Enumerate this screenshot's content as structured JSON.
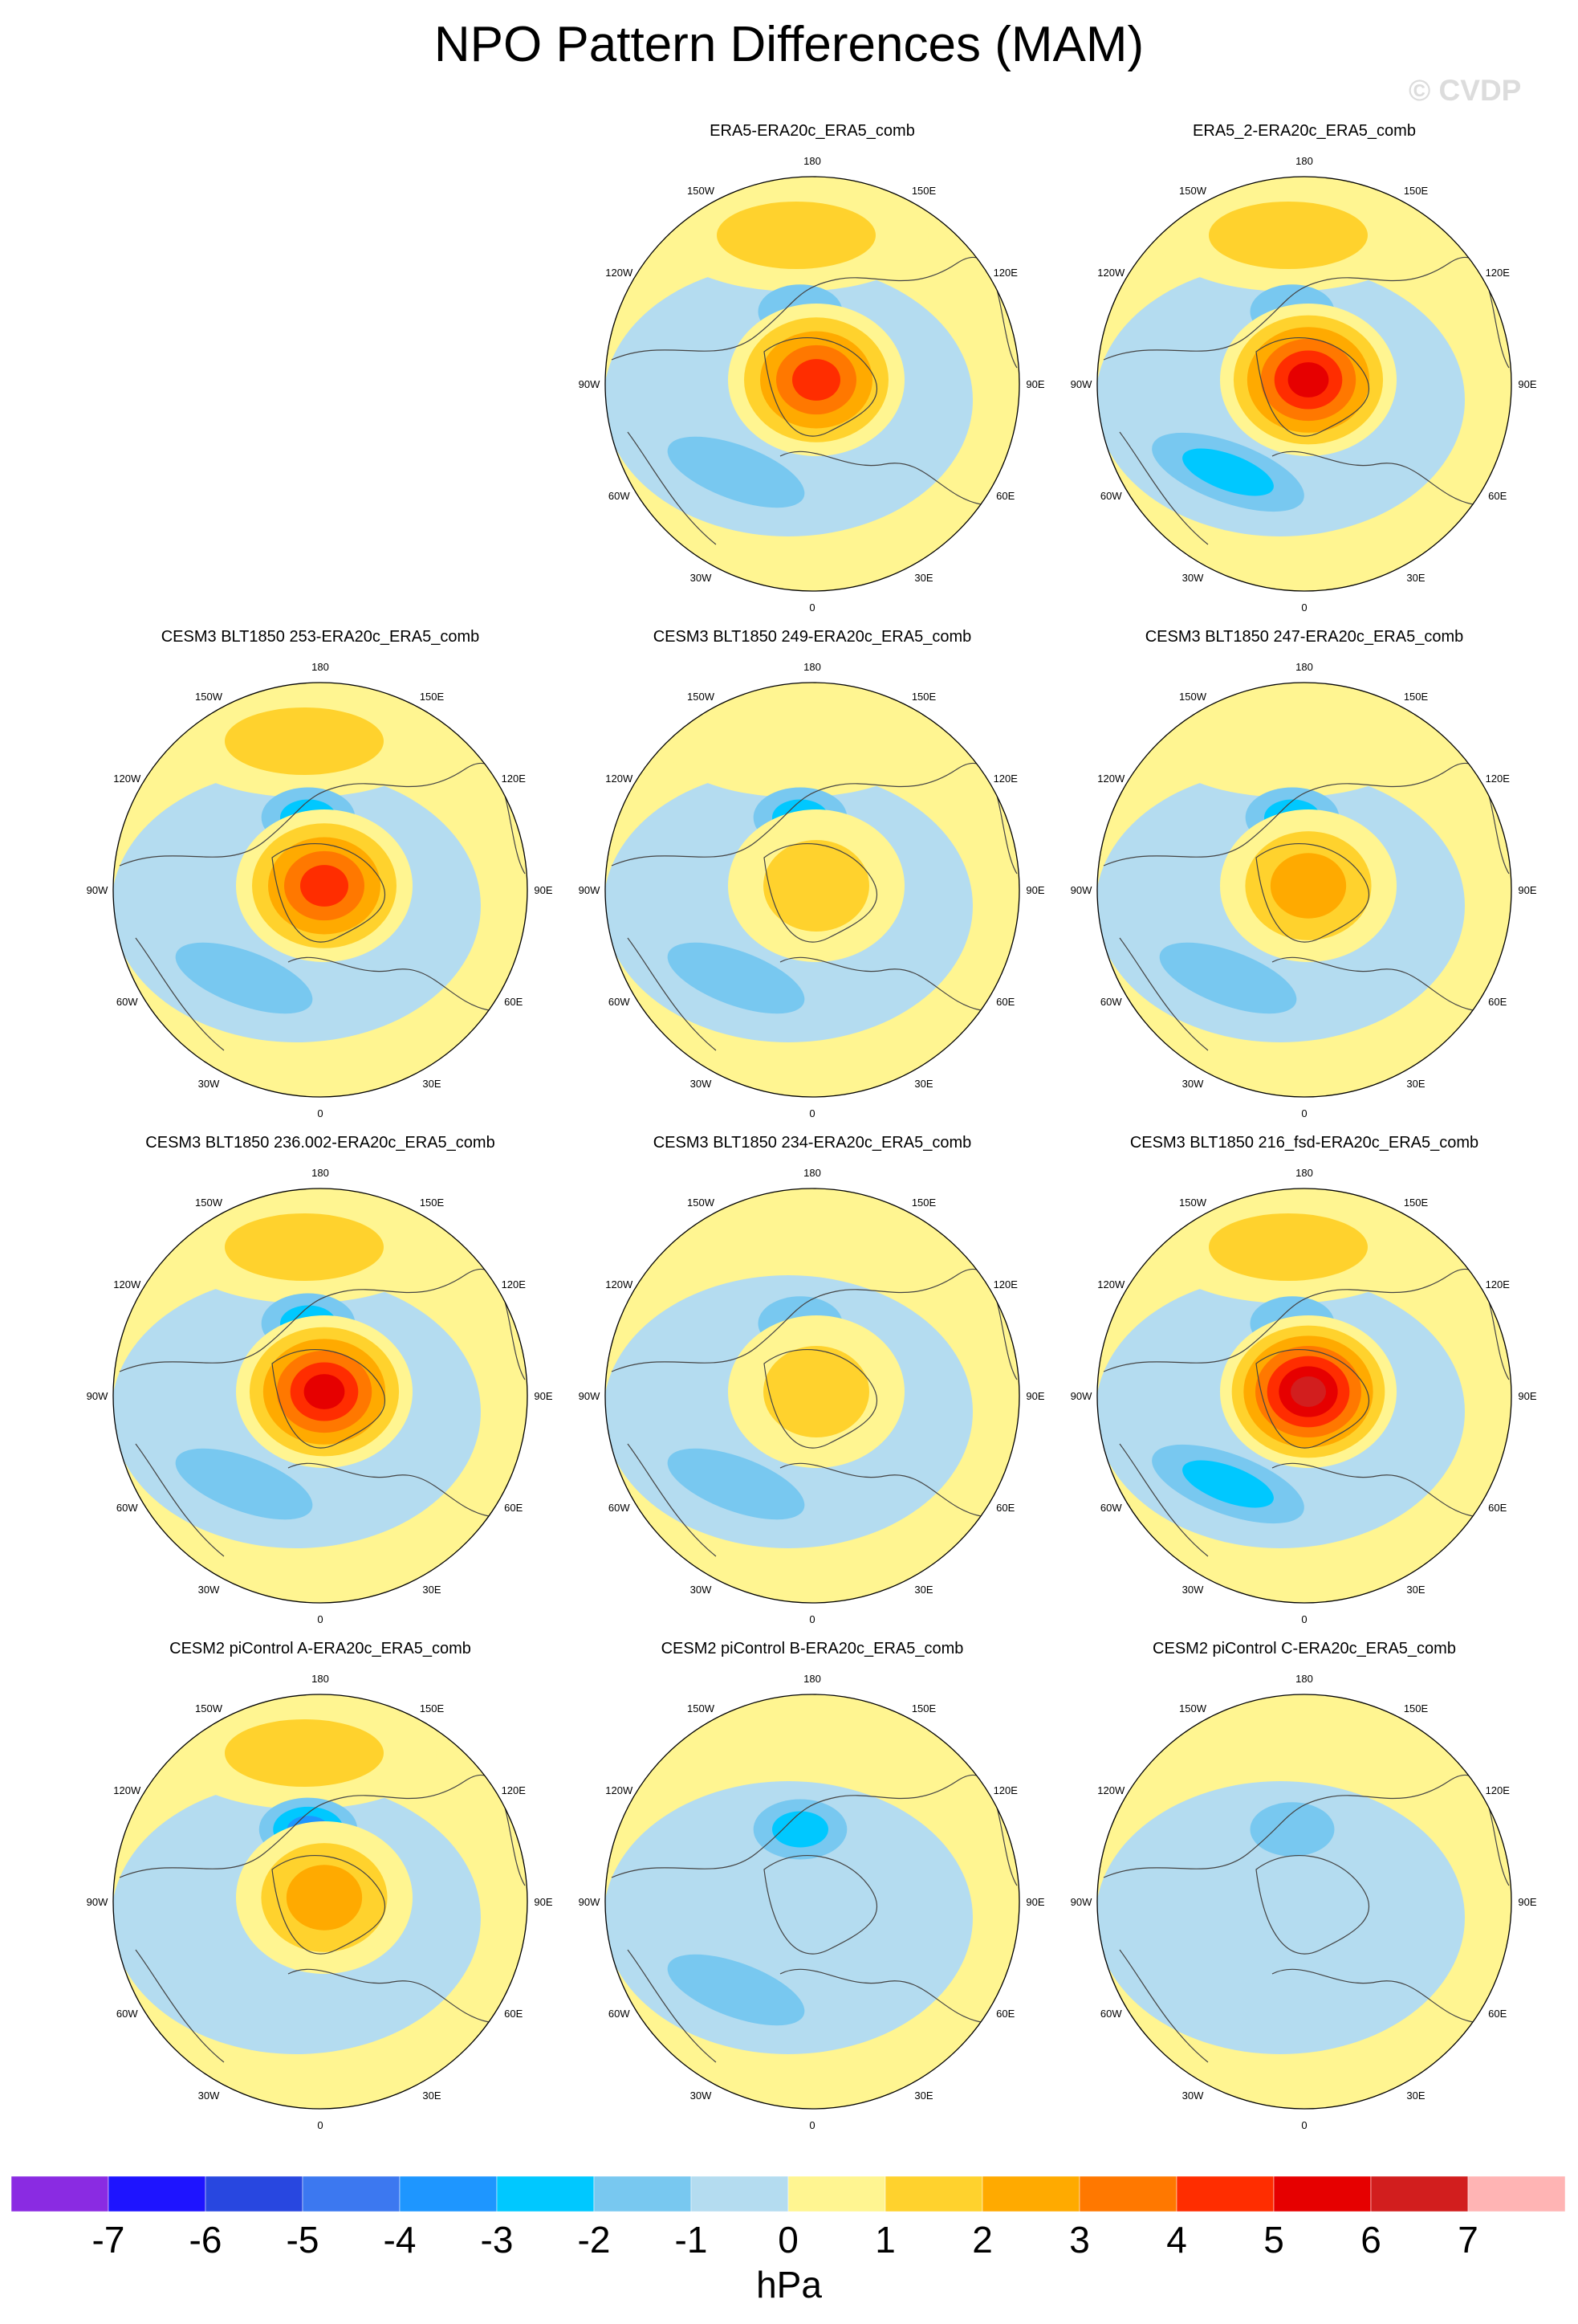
{
  "title": "NPO Pattern Differences (MAM)",
  "watermark": "© CVDP",
  "units": "hPa",
  "colorbar": {
    "labels": [
      "-7",
      "-6",
      "-5",
      "-4",
      "-3",
      "-2",
      "-1",
      "0",
      "1",
      "2",
      "3",
      "4",
      "5",
      "6",
      "7"
    ],
    "colors": [
      "#8a2be2",
      "#1e14ff",
      "#2847e0",
      "#3c78f0",
      "#1e96ff",
      "#00c8ff",
      "#78c8f0",
      "#b4dcf0",
      "#fff591",
      "#ffd22d",
      "#ffaa00",
      "#ff7800",
      "#ff2d00",
      "#e60000",
      "#d21e1e",
      "#ffb4b4"
    ]
  },
  "longitude_labels": {
    "top": "180",
    "upper_left": "150W",
    "upper_right": "150E",
    "left_high": "120W",
    "right_high": "120E",
    "left": "90W",
    "right": "90E",
    "left_low": "60W",
    "right_low": "60E",
    "lower_left": "30W",
    "lower_right": "30E",
    "bottom": "0"
  },
  "panels": [
    {
      "title": "ERA5-ERA20c_ERA5_comb",
      "pole_max": 5,
      "pacific_high": 2,
      "pacific_low": -2,
      "atlantic_low": -2
    },
    {
      "title": "ERA5_2-ERA20c_ERA5_comb",
      "pole_max": 6,
      "pacific_high": 2,
      "pacific_low": -2,
      "atlantic_low": -3
    },
    {
      "title": "CESM3 BLT1850 253-ERA20c_ERA5_comb",
      "pole_max": 5,
      "pacific_high": 2,
      "pacific_low": -3,
      "atlantic_low": -2
    },
    {
      "title": "CESM3 BLT1850 249-ERA20c_ERA5_comb",
      "pole_max": 2,
      "pacific_high": 1,
      "pacific_low": -3,
      "atlantic_low": -2
    },
    {
      "title": "CESM3 BLT1850 247-ERA20c_ERA5_comb",
      "pole_max": 3,
      "pacific_high": 1,
      "pacific_low": -3,
      "atlantic_low": -2
    },
    {
      "title": "CESM3 BLT1850 236.002-ERA20c_ERA5_comb",
      "pole_max": 6,
      "pacific_high": 2,
      "pacific_low": -3,
      "atlantic_low": -2
    },
    {
      "title": "CESM3 BLT1850 234-ERA20c_ERA5_comb",
      "pole_max": 2,
      "pacific_high": 0,
      "pacific_low": -2,
      "atlantic_low": -2
    },
    {
      "title": "CESM3 BLT1850 216_fsd-ERA20c_ERA5_comb",
      "pole_max": 7,
      "pacific_high": 2,
      "pacific_low": -2,
      "atlantic_low": -3
    },
    {
      "title": "CESM2 piControl A-ERA20c_ERA5_comb",
      "pole_max": 3,
      "pacific_high": 2,
      "pacific_low": -4,
      "atlantic_low": -1
    },
    {
      "title": "CESM2 piControl B-ERA20c_ERA5_comb",
      "pole_max": 0,
      "pacific_high": 0,
      "pacific_low": -3,
      "atlantic_low": -2
    },
    {
      "title": "CESM2 piControl C-ERA20c_ERA5_comb",
      "pole_max": 0,
      "pacific_high": 0,
      "pacific_low": -2,
      "atlantic_low": -1
    }
  ]
}
